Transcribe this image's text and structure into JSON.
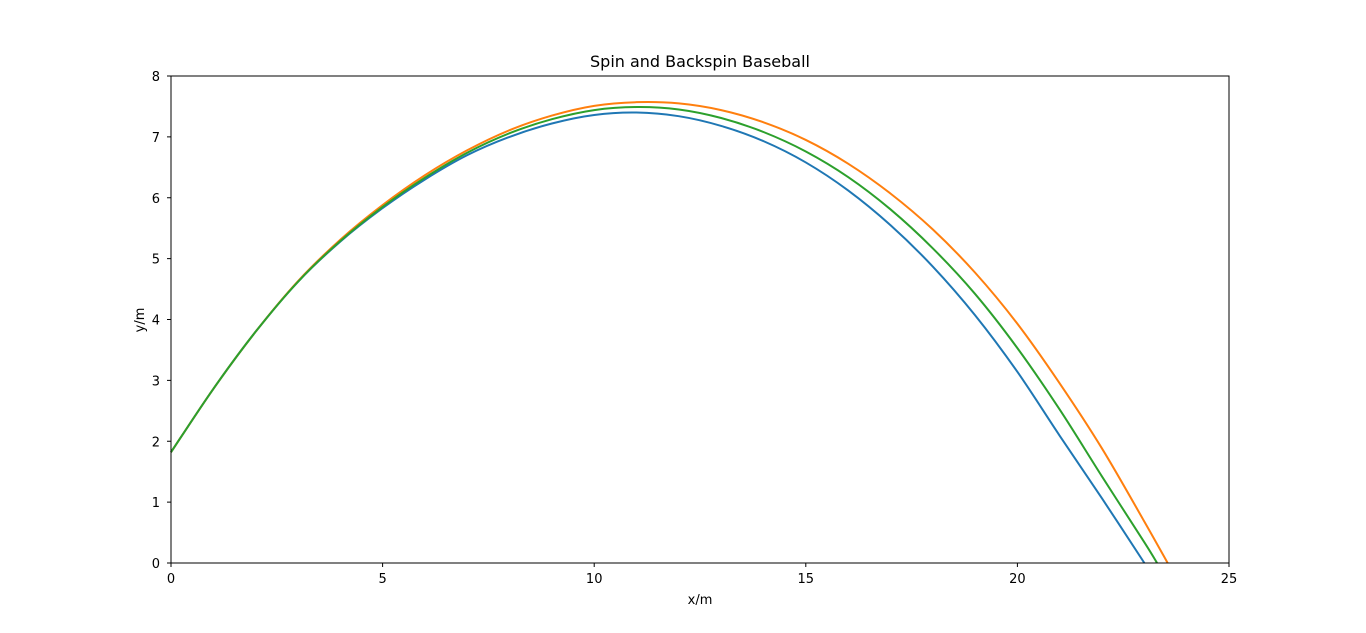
{
  "chart_data": {
    "type": "line",
    "title": "Spin and Backspin Baseball",
    "xlabel": "x/m",
    "ylabel": "y/m",
    "xlim": [
      0,
      25
    ],
    "ylim": [
      0,
      8
    ],
    "xticks": [
      0,
      5,
      10,
      15,
      20,
      25
    ],
    "yticks": [
      0,
      1,
      2,
      3,
      4,
      5,
      6,
      7,
      8
    ],
    "grid": false,
    "legend": "none",
    "series": [
      {
        "color": "#1f77b4",
        "x": [
          0,
          1,
          2,
          3,
          4,
          5,
          6,
          7,
          8,
          9,
          10,
          11,
          12,
          13,
          14,
          15,
          16,
          17,
          18,
          19,
          20,
          21,
          22,
          23
        ],
        "y": [
          1.82,
          2.86,
          3.8,
          4.62,
          5.28,
          5.83,
          6.3,
          6.7,
          7.0,
          7.22,
          7.36,
          7.4,
          7.34,
          7.18,
          6.93,
          6.58,
          6.12,
          5.55,
          4.87,
          4.07,
          3.14,
          2.09,
          1.06,
          0.0
        ]
      },
      {
        "color": "#ff7f0e",
        "x": [
          0,
          1,
          2,
          3,
          4,
          5,
          6,
          7,
          8,
          9,
          10,
          11,
          12,
          13,
          14,
          15,
          16,
          17,
          18,
          19,
          20,
          21,
          22,
          23,
          23.55
        ],
        "y": [
          1.82,
          2.86,
          3.8,
          4.63,
          5.31,
          5.88,
          6.37,
          6.78,
          7.11,
          7.35,
          7.51,
          7.57,
          7.55,
          7.44,
          7.24,
          6.95,
          6.56,
          6.07,
          5.48,
          4.77,
          3.93,
          2.95,
          1.88,
          0.68,
          0.0
        ]
      },
      {
        "color": "#2ca02c",
        "x": [
          0,
          1,
          2,
          3,
          4,
          5,
          6,
          7,
          8,
          9,
          10,
          11,
          12,
          13,
          14,
          15,
          16,
          17,
          18,
          19,
          20,
          21,
          22,
          23,
          23.3
        ],
        "y": [
          1.82,
          2.86,
          3.8,
          4.62,
          5.29,
          5.85,
          6.33,
          6.74,
          7.06,
          7.29,
          7.44,
          7.49,
          7.45,
          7.31,
          7.08,
          6.76,
          6.34,
          5.81,
          5.17,
          4.42,
          3.53,
          2.52,
          1.42,
          0.34,
          0.0
        ]
      }
    ]
  }
}
